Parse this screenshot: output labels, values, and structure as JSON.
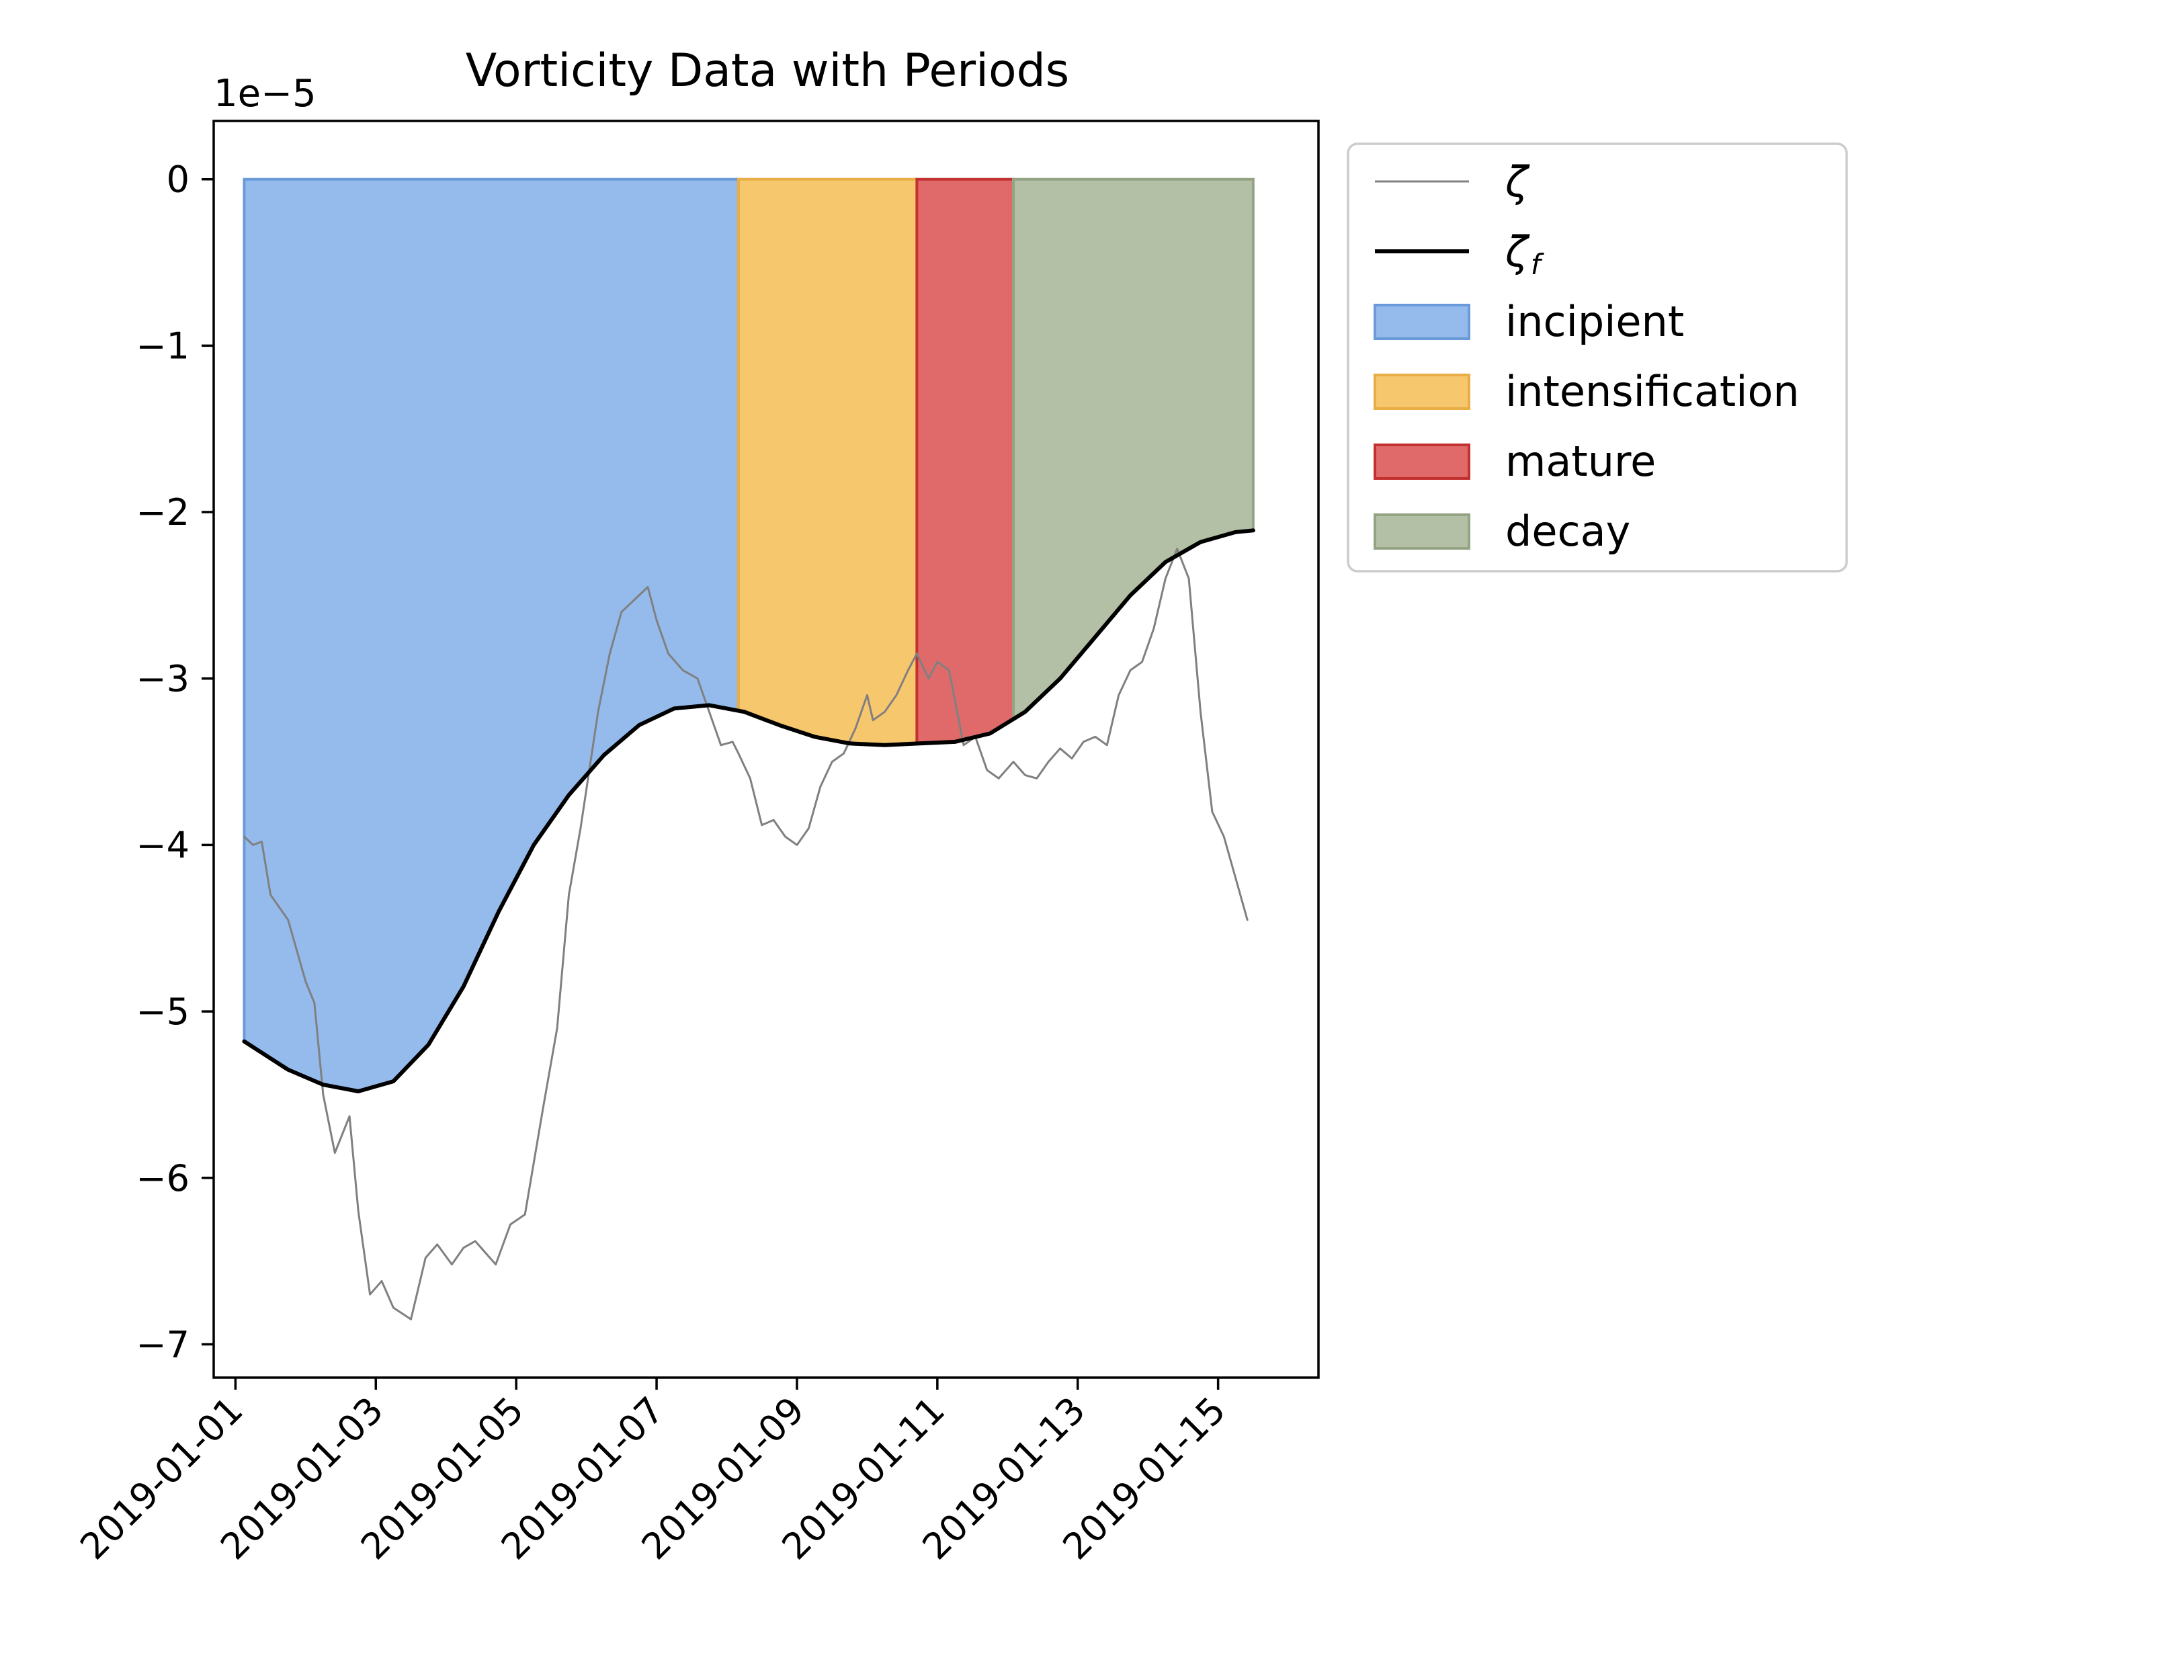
{
  "chart_data": {
    "type": "line",
    "title": "Vorticity Data with Periods",
    "y_offset_label": "1e−5",
    "xlabel": "",
    "ylabel": "",
    "x_range": [
      "2019-01-01T00:00",
      "2019-01-16T00:00"
    ],
    "ylim": [
      -7.2,
      0.35
    ],
    "x_tick_labels": [
      "2019-01-01",
      "2019-01-03",
      "2019-01-05",
      "2019-01-07",
      "2019-01-09",
      "2019-01-11",
      "2019-01-13",
      "2019-01-15"
    ],
    "y_ticks": [
      0,
      -1,
      -2,
      -3,
      -4,
      -5,
      -6,
      -7
    ],
    "y_tick_labels": [
      "0",
      "−1",
      "−2",
      "−3",
      "−4",
      "−5",
      "−6",
      "−7"
    ],
    "legend_placement": "outside upper right",
    "periods": [
      {
        "name": "incipient",
        "start": "2019-01-01T03:00",
        "end": "2019-01-08T04:00",
        "fill": "#7aaae8",
        "edge": "#6a9ad8"
      },
      {
        "name": "intensification",
        "start": "2019-01-08T04:00",
        "end": "2019-01-10T17:00",
        "fill": "#f5b94a",
        "edge": "#e8ad44"
      },
      {
        "name": "mature",
        "start": "2019-01-10T17:00",
        "end": "2019-01-12T02:00",
        "fill": "#d84545",
        "edge": "#c23030"
      },
      {
        "name": "decay",
        "start": "2019-01-12T02:00",
        "end": "2019-01-15T12:00",
        "fill": "#a0b08e",
        "edge": "#93a383"
      }
    ],
    "series": [
      {
        "name": "ζ",
        "color": "#808080",
        "points": [
          [
            "2019-01-01T03:00",
            -3.95
          ],
          [
            "2019-01-01T06:00",
            -4.0
          ],
          [
            "2019-01-01T09:00",
            -3.98
          ],
          [
            "2019-01-01T12:00",
            -4.3
          ],
          [
            "2019-01-01T18:00",
            -4.45
          ],
          [
            "2019-01-02T00:00",
            -4.82
          ],
          [
            "2019-01-02T03:00",
            -4.95
          ],
          [
            "2019-01-02T06:00",
            -5.5
          ],
          [
            "2019-01-02T10:00",
            -5.85
          ],
          [
            "2019-01-02T15:00",
            -5.63
          ],
          [
            "2019-01-02T18:00",
            -6.2
          ],
          [
            "2019-01-02T22:00",
            -6.7
          ],
          [
            "2019-01-03T02:00",
            -6.62
          ],
          [
            "2019-01-03T06:00",
            -6.78
          ],
          [
            "2019-01-03T12:00",
            -6.85
          ],
          [
            "2019-01-03T17:00",
            -6.48
          ],
          [
            "2019-01-03T21:00",
            -6.4
          ],
          [
            "2019-01-04T02:00",
            -6.52
          ],
          [
            "2019-01-04T06:00",
            -6.42
          ],
          [
            "2019-01-04T10:00",
            -6.38
          ],
          [
            "2019-01-04T14:00",
            -6.46
          ],
          [
            "2019-01-04T17:00",
            -6.52
          ],
          [
            "2019-01-04T22:00",
            -6.28
          ],
          [
            "2019-01-05T03:00",
            -6.22
          ],
          [
            "2019-01-05T09:00",
            -5.6
          ],
          [
            "2019-01-05T14:00",
            -5.1
          ],
          [
            "2019-01-05T18:00",
            -4.3
          ],
          [
            "2019-01-05T22:00",
            -3.9
          ],
          [
            "2019-01-06T04:00",
            -3.2
          ],
          [
            "2019-01-06T08:00",
            -2.85
          ],
          [
            "2019-01-06T12:00",
            -2.6
          ],
          [
            "2019-01-06T18:00",
            -2.5
          ],
          [
            "2019-01-06T21:00",
            -2.45
          ],
          [
            "2019-01-07T00:00",
            -2.65
          ],
          [
            "2019-01-07T04:00",
            -2.85
          ],
          [
            "2019-01-07T09:00",
            -2.95
          ],
          [
            "2019-01-07T14:00",
            -3.0
          ],
          [
            "2019-01-07T18:00",
            -3.2
          ],
          [
            "2019-01-07T22:00",
            -3.4
          ],
          [
            "2019-01-08T02:00",
            -3.38
          ],
          [
            "2019-01-08T04:00",
            -3.45
          ],
          [
            "2019-01-08T08:00",
            -3.6
          ],
          [
            "2019-01-08T12:00",
            -3.88
          ],
          [
            "2019-01-08T16:00",
            -3.85
          ],
          [
            "2019-01-08T20:00",
            -3.95
          ],
          [
            "2019-01-09T00:00",
            -4.0
          ],
          [
            "2019-01-09T04:00",
            -3.9
          ],
          [
            "2019-01-09T08:00",
            -3.65
          ],
          [
            "2019-01-09T12:00",
            -3.5
          ],
          [
            "2019-01-09T16:00",
            -3.45
          ],
          [
            "2019-01-09T20:00",
            -3.3
          ],
          [
            "2019-01-10T00:00",
            -3.1
          ],
          [
            "2019-01-10T02:00",
            -3.25
          ],
          [
            "2019-01-10T06:00",
            -3.2
          ],
          [
            "2019-01-10T10:00",
            -3.1
          ],
          [
            "2019-01-10T14:00",
            -2.95
          ],
          [
            "2019-01-10T17:00",
            -2.85
          ],
          [
            "2019-01-10T21:00",
            -3.0
          ],
          [
            "2019-01-11T00:00",
            -2.9
          ],
          [
            "2019-01-11T04:00",
            -2.95
          ],
          [
            "2019-01-11T09:00",
            -3.4
          ],
          [
            "2019-01-11T13:00",
            -3.35
          ],
          [
            "2019-01-11T17:00",
            -3.55
          ],
          [
            "2019-01-11T21:00",
            -3.6
          ],
          [
            "2019-01-12T02:00",
            -3.5
          ],
          [
            "2019-01-12T06:00",
            -3.58
          ],
          [
            "2019-01-12T10:00",
            -3.6
          ],
          [
            "2019-01-12T14:00",
            -3.5
          ],
          [
            "2019-01-12T18:00",
            -3.42
          ],
          [
            "2019-01-12T22:00",
            -3.48
          ],
          [
            "2019-01-13T02:00",
            -3.38
          ],
          [
            "2019-01-13T06:00",
            -3.35
          ],
          [
            "2019-01-13T10:00",
            -3.4
          ],
          [
            "2019-01-13T14:00",
            -3.1
          ],
          [
            "2019-01-13T18:00",
            -2.95
          ],
          [
            "2019-01-13T22:00",
            -2.9
          ],
          [
            "2019-01-14T02:00",
            -2.7
          ],
          [
            "2019-01-14T06:00",
            -2.4
          ],
          [
            "2019-01-14T10:00",
            -2.22
          ],
          [
            "2019-01-14T14:00",
            -2.4
          ],
          [
            "2019-01-14T18:00",
            -3.2
          ],
          [
            "2019-01-14T22:00",
            -3.8
          ],
          [
            "2019-01-15T02:00",
            -3.95
          ],
          [
            "2019-01-15T06:00",
            -4.2
          ],
          [
            "2019-01-15T10:00",
            -4.45
          ]
        ]
      },
      {
        "name": "ζ_f",
        "color": "#000000",
        "points": [
          [
            "2019-01-01T03:00",
            -5.18
          ],
          [
            "2019-01-01T18:00",
            -5.35
          ],
          [
            "2019-01-02T06:00",
            -5.44
          ],
          [
            "2019-01-02T18:00",
            -5.48
          ],
          [
            "2019-01-03T06:00",
            -5.42
          ],
          [
            "2019-01-03T18:00",
            -5.2
          ],
          [
            "2019-01-04T06:00",
            -4.85
          ],
          [
            "2019-01-04T18:00",
            -4.4
          ],
          [
            "2019-01-05T06:00",
            -4.0
          ],
          [
            "2019-01-05T18:00",
            -3.7
          ],
          [
            "2019-01-06T06:00",
            -3.46
          ],
          [
            "2019-01-06T18:00",
            -3.28
          ],
          [
            "2019-01-07T06:00",
            -3.18
          ],
          [
            "2019-01-07T18:00",
            -3.16
          ],
          [
            "2019-01-08T06:00",
            -3.2
          ],
          [
            "2019-01-08T18:00",
            -3.28
          ],
          [
            "2019-01-09T06:00",
            -3.35
          ],
          [
            "2019-01-09T18:00",
            -3.39
          ],
          [
            "2019-01-10T06:00",
            -3.4
          ],
          [
            "2019-01-10T18:00",
            -3.39
          ],
          [
            "2019-01-11T06:00",
            -3.38
          ],
          [
            "2019-01-11T18:00",
            -3.33
          ],
          [
            "2019-01-12T06:00",
            -3.2
          ],
          [
            "2019-01-12T18:00",
            -3.0
          ],
          [
            "2019-01-13T06:00",
            -2.75
          ],
          [
            "2019-01-13T18:00",
            -2.5
          ],
          [
            "2019-01-14T06:00",
            -2.3
          ],
          [
            "2019-01-14T18:00",
            -2.18
          ],
          [
            "2019-01-15T06:00",
            -2.12
          ],
          [
            "2019-01-15T12:00",
            -2.11
          ]
        ]
      }
    ]
  },
  "legend": {
    "items": [
      {
        "label": "ζ",
        "sub": "",
        "kind": "line",
        "color": "#808080"
      },
      {
        "label": "ζ",
        "sub": "f",
        "kind": "line-bold",
        "color": "#000000"
      },
      {
        "label": "incipient",
        "sub": "",
        "kind": "patch",
        "color": "#7aaae8",
        "edge": "#6a9ad8"
      },
      {
        "label": "intensification",
        "sub": "",
        "kind": "patch",
        "color": "#f5b94a",
        "edge": "#e8ad44"
      },
      {
        "label": "mature",
        "sub": "",
        "kind": "patch",
        "color": "#d84545",
        "edge": "#c23030"
      },
      {
        "label": "decay",
        "sub": "",
        "kind": "patch",
        "color": "#a0b08e",
        "edge": "#93a383"
      }
    ]
  }
}
